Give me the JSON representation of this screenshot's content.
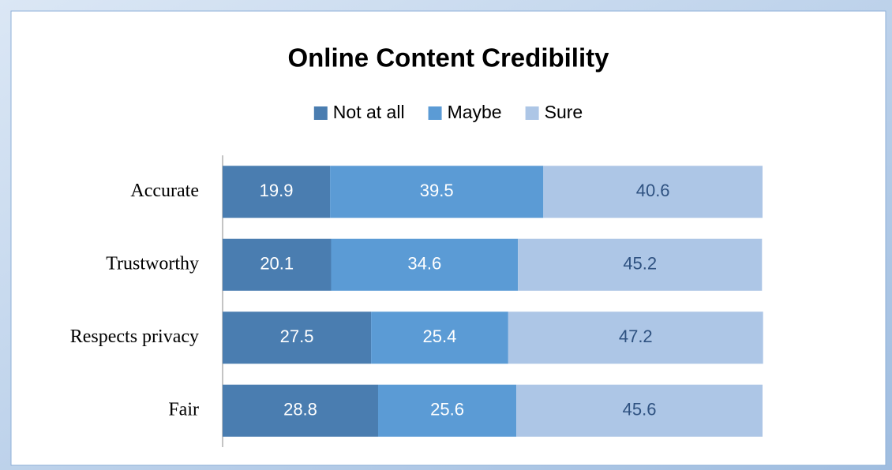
{
  "chart_data": {
    "type": "stacked_barh",
    "title": "Online Content Credibility",
    "categories": [
      "Accurate",
      "Trustworthy",
      "Respects privacy",
      "Fair"
    ],
    "series": [
      {
        "name": "Not at all",
        "color": "#4a7db0",
        "label_color": "#ffffff",
        "values": [
          19.9,
          20.1,
          27.5,
          28.8
        ]
      },
      {
        "name": "Maybe",
        "color": "#5b9bd5",
        "label_color": "#ffffff",
        "values": [
          39.5,
          34.6,
          25.4,
          25.6
        ]
      },
      {
        "name": "Sure",
        "color": "#adc6e6",
        "label_color": "#2f5281",
        "values": [
          40.6,
          45.2,
          47.2,
          45.6
        ]
      }
    ],
    "xlim": [
      0,
      100
    ],
    "legend": "top"
  }
}
